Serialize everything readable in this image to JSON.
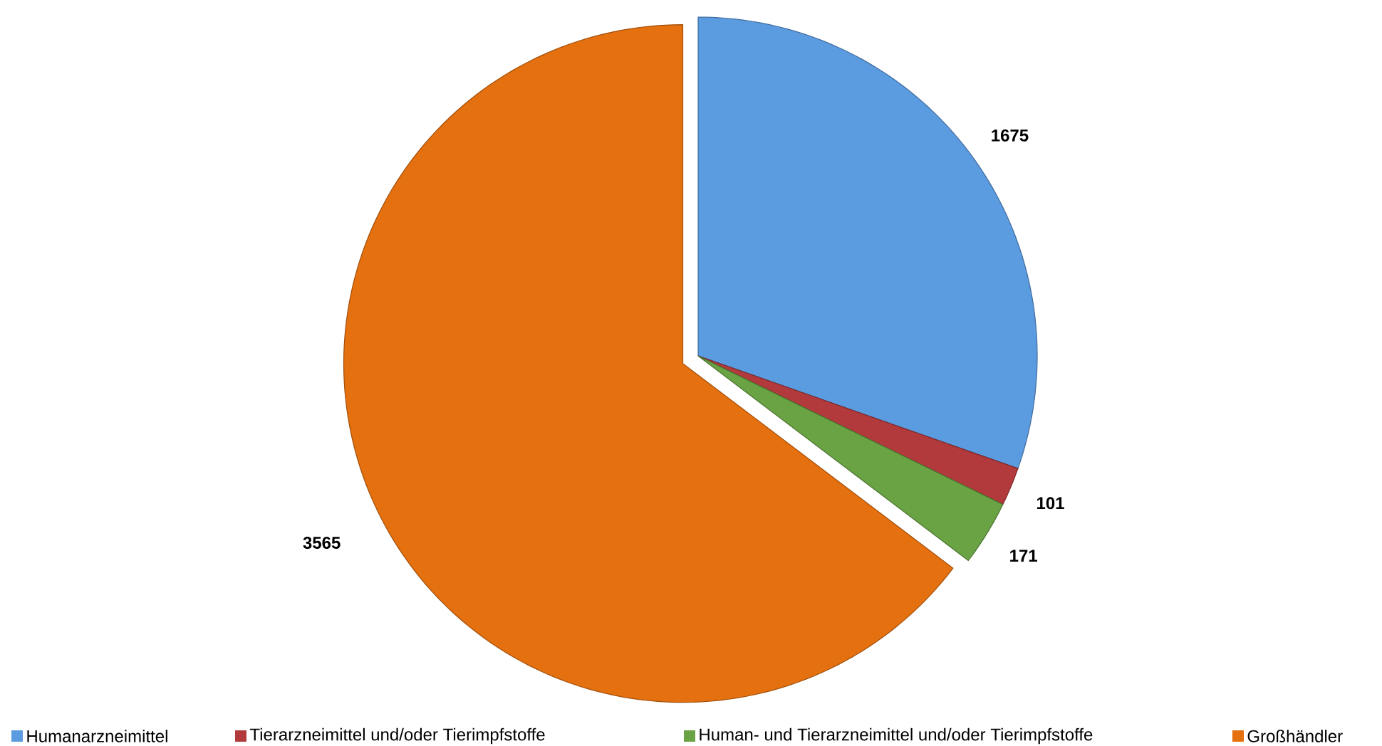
{
  "chart_data": {
    "type": "pie",
    "categories": [
      "Humanarzneimittel",
      "Tierarzneimittel und/oder Tierimpfstoffe",
      "Human- und Tierarzneimittel und/oder Tierimpfstoffe",
      "Großhändler"
    ],
    "values": [
      1675,
      101,
      171,
      3565
    ],
    "colors": [
      "#5b9be0",
      "#b23a3c",
      "#6aa343",
      "#e5700f"
    ],
    "data_labels": true,
    "legend": "bottom"
  }
}
